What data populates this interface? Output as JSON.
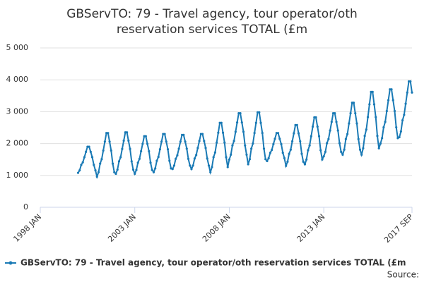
{
  "chart_data": {
    "type": "line",
    "title": [
      "GBServTO: 79 - Travel agency, tour operator/oth",
      "reservation services TOTAL (£m"
    ],
    "x": [
      "2000-01",
      "2000-02",
      "2000-03",
      "2000-04",
      "2000-05",
      "2000-06",
      "2000-07",
      "2000-08",
      "2000-09",
      "2000-10",
      "2000-11",
      "2000-12",
      "2001-01",
      "2001-02",
      "2001-03",
      "2001-04",
      "2001-05",
      "2001-06",
      "2001-07",
      "2001-08",
      "2001-09",
      "2001-10",
      "2001-11",
      "2001-12",
      "2002-01",
      "2002-02",
      "2002-03",
      "2002-04",
      "2002-05",
      "2002-06",
      "2002-07",
      "2002-08",
      "2002-09",
      "2002-10",
      "2002-11",
      "2002-12",
      "2003-01",
      "2003-02",
      "2003-03",
      "2003-04",
      "2003-05",
      "2003-06",
      "2003-07",
      "2003-08",
      "2003-09",
      "2003-10",
      "2003-11",
      "2003-12",
      "2004-01",
      "2004-02",
      "2004-03",
      "2004-04",
      "2004-05",
      "2004-06",
      "2004-07",
      "2004-08",
      "2004-09",
      "2004-10",
      "2004-11",
      "2004-12",
      "2005-01",
      "2005-02",
      "2005-03",
      "2005-04",
      "2005-05",
      "2005-06",
      "2005-07",
      "2005-08",
      "2005-09",
      "2005-10",
      "2005-11",
      "2005-12",
      "2006-01",
      "2006-02",
      "2006-03",
      "2006-04",
      "2006-05",
      "2006-06",
      "2006-07",
      "2006-08",
      "2006-09",
      "2006-10",
      "2006-11",
      "2006-12",
      "2007-01",
      "2007-02",
      "2007-03",
      "2007-04",
      "2007-05",
      "2007-06",
      "2007-07",
      "2007-08",
      "2007-09",
      "2007-10",
      "2007-11",
      "2007-12",
      "2008-01",
      "2008-02",
      "2008-03",
      "2008-04",
      "2008-05",
      "2008-06",
      "2008-07",
      "2008-08",
      "2008-09",
      "2008-10",
      "2008-11",
      "2008-12",
      "2009-01",
      "2009-02",
      "2009-03",
      "2009-04",
      "2009-05",
      "2009-06",
      "2009-07",
      "2009-08",
      "2009-09",
      "2009-10",
      "2009-11",
      "2009-12",
      "2010-01",
      "2010-02",
      "2010-03",
      "2010-04",
      "2010-05",
      "2010-06",
      "2010-07",
      "2010-08",
      "2010-09",
      "2010-10",
      "2010-11",
      "2010-12",
      "2011-01",
      "2011-02",
      "2011-03",
      "2011-04",
      "2011-05",
      "2011-06",
      "2011-07",
      "2011-08",
      "2011-09",
      "2011-10",
      "2011-11",
      "2011-12",
      "2012-01",
      "2012-02",
      "2012-03",
      "2012-04",
      "2012-05",
      "2012-06",
      "2012-07",
      "2012-08",
      "2012-09",
      "2012-10",
      "2012-11",
      "2012-12",
      "2013-01",
      "2013-02",
      "2013-03",
      "2013-04",
      "2013-05",
      "2013-06",
      "2013-07",
      "2013-08",
      "2013-09",
      "2013-10",
      "2013-11",
      "2013-12",
      "2014-01",
      "2014-02",
      "2014-03",
      "2014-04",
      "2014-05",
      "2014-06",
      "2014-07",
      "2014-08",
      "2014-09",
      "2014-10",
      "2014-11",
      "2014-12",
      "2015-01",
      "2015-02",
      "2015-03",
      "2015-04",
      "2015-05",
      "2015-06",
      "2015-07",
      "2015-08",
      "2015-09",
      "2015-10",
      "2015-11",
      "2015-12",
      "2016-01",
      "2016-02",
      "2016-03",
      "2016-04",
      "2016-05",
      "2016-06",
      "2016-07",
      "2016-08",
      "2016-09",
      "2016-10",
      "2016-11",
      "2016-12",
      "2017-01",
      "2017-02",
      "2017-03",
      "2017-04",
      "2017-05",
      "2017-06",
      "2017-07",
      "2017-08",
      "2017-09"
    ],
    "series": [
      {
        "name": "GBServTO: 79 - Travel agency, tour operator/oth reservation services TOTAL (£m",
        "color": "#1a7ab5",
        "values": [
          1080,
          1160,
          1330,
          1410,
          1570,
          1740,
          1900,
          1900,
          1740,
          1570,
          1330,
          1160,
          960,
          1100,
          1370,
          1510,
          1780,
          2060,
          2330,
          2330,
          2060,
          1780,
          1370,
          1100,
          1050,
          1180,
          1440,
          1570,
          1830,
          2090,
          2350,
          2350,
          2090,
          1830,
          1440,
          1180,
          1050,
          1170,
          1400,
          1520,
          1760,
          1990,
          2230,
          2230,
          1990,
          1760,
          1400,
          1170,
          1100,
          1220,
          1460,
          1580,
          1820,
          2060,
          2300,
          2300,
          2060,
          1820,
          1460,
          1220,
          1200,
          1310,
          1520,
          1630,
          1840,
          2060,
          2270,
          2270,
          2060,
          1840,
          1520,
          1310,
          1200,
          1310,
          1530,
          1640,
          1860,
          2080,
          2300,
          2300,
          2080,
          1860,
          1530,
          1310,
          1100,
          1260,
          1570,
          1720,
          2030,
          2340,
          2650,
          2650,
          2340,
          2030,
          1570,
          1260,
          1500,
          1650,
          1940,
          2080,
          2370,
          2660,
          2950,
          2950,
          2660,
          2370,
          1940,
          1650,
          1350,
          1510,
          1840,
          2000,
          2330,
          2650,
          2980,
          2980,
          2650,
          2330,
          1840,
          1510,
          1450,
          1540,
          1710,
          1800,
          1980,
          2150,
          2330,
          2330,
          2150,
          1980,
          1710,
          1540,
          1300,
          1430,
          1680,
          1810,
          2070,
          2320,
          2580,
          2580,
          2320,
          2070,
          1680,
          1430,
          1350,
          1500,
          1790,
          1940,
          2230,
          2530,
          2820,
          2820,
          2530,
          2230,
          1790,
          1500,
          1600,
          1740,
          2010,
          2140,
          2410,
          2680,
          2950,
          2950,
          2680,
          2410,
          2010,
          1740,
          1650,
          1810,
          2140,
          2300,
          2630,
          2950,
          3280,
          3280,
          2950,
          2630,
          2140,
          1810,
          1650,
          1850,
          2240,
          2440,
          2830,
          3230,
          3620,
          3620,
          3230,
          2830,
          2240,
          1850,
          2000,
          2170,
          2510,
          2680,
          3020,
          3360,
          3700,
          3700,
          3360,
          3020,
          2510,
          2170,
          2200,
          2380,
          2730,
          2900,
          3250,
          3600,
          3950,
          3950,
          3600
        ]
      }
    ],
    "xlim": [
      "1998-01",
      "2017-09"
    ],
    "xticks": [
      {
        "value": "1998-01",
        "label": "1998 JAN"
      },
      {
        "value": "2003-01",
        "label": "2003 JAN"
      },
      {
        "value": "2008-01",
        "label": "2008 JAN"
      },
      {
        "value": "2013-01",
        "label": "2013 JAN"
      },
      {
        "value": "2017-09",
        "label": "2017 SEP"
      }
    ],
    "ylim": [
      0,
      5000
    ],
    "yticks": [
      0,
      {
        "value": 1000,
        "label": "1 000"
      },
      {
        "value": 2000,
        "label": "2 000"
      },
      {
        "value": 3000,
        "label": "3 000"
      },
      {
        "value": 4000,
        "label": "4 000"
      },
      {
        "value": 5000,
        "label": "5 000"
      }
    ],
    "grid": true,
    "source": "Source:"
  }
}
